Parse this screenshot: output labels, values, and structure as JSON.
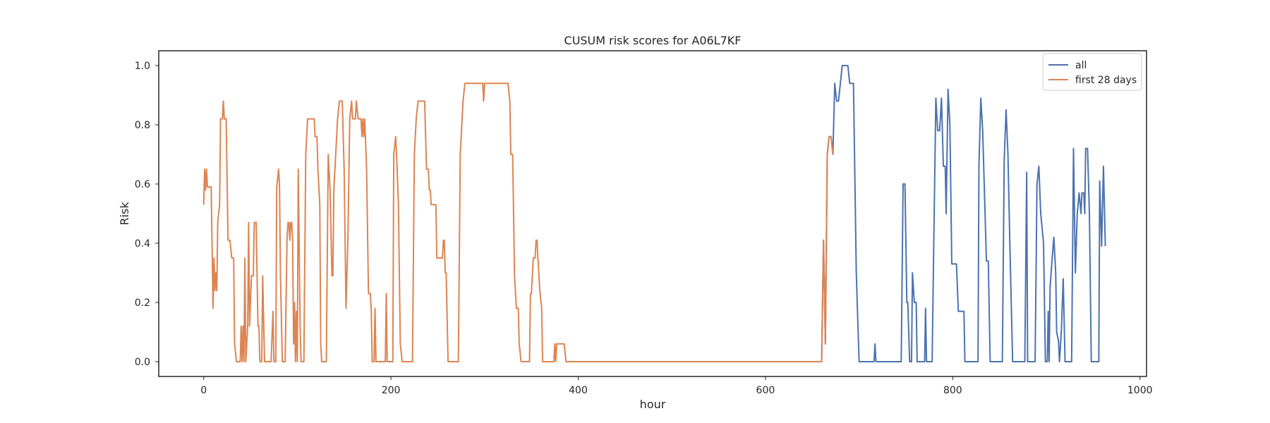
{
  "chart_data": {
    "type": "line",
    "title": "CUSUM risk scores for A06L7KF",
    "xlabel": "hour",
    "ylabel": "Risk",
    "xlim": [
      -48,
      1007
    ],
    "ylim": [
      -0.05,
      1.05
    ],
    "xticks": [
      0,
      200,
      400,
      600,
      800,
      1000
    ],
    "yticks": [
      0.0,
      0.2,
      0.4,
      0.6,
      0.8,
      1.0
    ],
    "grid": false,
    "legend_position": "top-right",
    "series": [
      {
        "name": "all",
        "color": "#4c72b0",
        "points": [
          [
            660,
            0
          ],
          [
            662,
            0.41
          ],
          [
            664,
            0.06
          ],
          [
            666,
            0.7
          ],
          [
            668,
            0.76
          ],
          [
            670,
            0.76
          ],
          [
            672,
            0.7
          ],
          [
            674,
            0.94
          ],
          [
            676,
            0.88
          ],
          [
            678,
            0.88
          ],
          [
            680,
            0.94
          ],
          [
            682,
            1.0
          ],
          [
            688,
            1.0
          ],
          [
            690,
            0.94
          ],
          [
            694,
            0.94
          ],
          [
            697,
            0.3
          ],
          [
            700,
            0
          ],
          [
            716,
            0
          ],
          [
            717,
            0.06
          ],
          [
            718,
            0
          ],
          [
            745,
            0
          ],
          [
            747,
            0.6
          ],
          [
            749,
            0.6
          ],
          [
            751,
            0.2
          ],
          [
            752,
            0.2
          ],
          [
            754,
            0
          ],
          [
            756,
            0
          ],
          [
            757,
            0.3
          ],
          [
            759,
            0.2
          ],
          [
            761,
            0.2
          ],
          [
            762,
            0
          ],
          [
            770,
            0
          ],
          [
            771,
            0.18
          ],
          [
            772,
            0
          ],
          [
            778,
            0
          ],
          [
            780,
            0.45
          ],
          [
            782,
            0.89
          ],
          [
            784,
            0.78
          ],
          [
            786,
            0.78
          ],
          [
            788,
            0.89
          ],
          [
            790,
            0.66
          ],
          [
            792,
            0.66
          ],
          [
            793,
            0.5
          ],
          [
            795,
            0.92
          ],
          [
            797,
            0.8
          ],
          [
            799,
            0.33
          ],
          [
            804,
            0.33
          ],
          [
            806,
            0.17
          ],
          [
            812,
            0.17
          ],
          [
            813,
            0
          ],
          [
            827,
            0
          ],
          [
            828,
            0.66
          ],
          [
            830,
            0.89
          ],
          [
            832,
            0.78
          ],
          [
            834,
            0.56
          ],
          [
            836,
            0.34
          ],
          [
            838,
            0.34
          ],
          [
            840,
            0
          ],
          [
            853,
            0
          ],
          [
            855,
            0.68
          ],
          [
            857,
            0.85
          ],
          [
            859,
            0.7
          ],
          [
            861,
            0.4
          ],
          [
            864,
            0
          ],
          [
            877,
            0
          ],
          [
            879,
            0.64
          ],
          [
            880,
            0
          ],
          [
            888,
            0
          ],
          [
            890,
            0.6
          ],
          [
            892,
            0.66
          ],
          [
            894,
            0.5
          ],
          [
            897,
            0.4
          ],
          [
            899,
            0
          ],
          [
            901,
            0
          ],
          [
            902,
            0.17
          ],
          [
            903,
            0
          ],
          [
            904,
            0.25
          ],
          [
            906,
            0.34
          ],
          [
            908,
            0.42
          ],
          [
            910,
            0.3
          ],
          [
            911,
            0.1
          ],
          [
            913,
            0.07
          ],
          [
            914,
            0
          ],
          [
            916,
            0.1
          ],
          [
            918,
            0.28
          ],
          [
            920,
            0
          ],
          [
            927,
            0
          ],
          [
            929,
            0.72
          ],
          [
            931,
            0.3
          ],
          [
            933,
            0.5
          ],
          [
            935,
            0.57
          ],
          [
            937,
            0.5
          ],
          [
            938,
            0.57
          ],
          [
            940,
            0.57
          ],
          [
            941,
            0.5
          ],
          [
            942,
            0.72
          ],
          [
            944,
            0.72
          ],
          [
            946,
            0.5
          ],
          [
            948,
            0
          ],
          [
            956,
            0
          ],
          [
            957,
            0.61
          ],
          [
            959,
            0.39
          ],
          [
            961,
            0.66
          ],
          [
            963,
            0.39
          ]
        ]
      },
      {
        "name": "first 28 days",
        "color": "#dd8452",
        "points": [
          [
            0,
            0.53
          ],
          [
            1,
            0.65
          ],
          [
            2,
            0.58
          ],
          [
            3,
            0.65
          ],
          [
            4,
            0.59
          ],
          [
            8,
            0.59
          ],
          [
            10,
            0.18
          ],
          [
            11,
            0.35
          ],
          [
            12,
            0.24
          ],
          [
            13,
            0.3
          ],
          [
            14,
            0.24
          ],
          [
            15,
            0.47
          ],
          [
            17,
            0.53
          ],
          [
            18,
            0.82
          ],
          [
            20,
            0.82
          ],
          [
            21,
            0.88
          ],
          [
            22,
            0.82
          ],
          [
            24,
            0.82
          ],
          [
            26,
            0.41
          ],
          [
            28,
            0.41
          ],
          [
            30,
            0.35
          ],
          [
            32,
            0.35
          ],
          [
            33,
            0.06
          ],
          [
            35,
            0
          ],
          [
            39,
            0
          ],
          [
            40,
            0.12
          ],
          [
            41,
            0
          ],
          [
            42,
            0.12
          ],
          [
            43,
            0
          ],
          [
            44,
            0.35
          ],
          [
            45,
            0
          ],
          [
            47,
            0.12
          ],
          [
            48,
            0.47
          ],
          [
            49,
            0.12
          ],
          [
            51,
            0.29
          ],
          [
            53,
            0.29
          ],
          [
            54,
            0.47
          ],
          [
            56,
            0.47
          ],
          [
            58,
            0.12
          ],
          [
            59,
            0.12
          ],
          [
            60,
            0
          ],
          [
            62,
            0
          ],
          [
            63,
            0.29
          ],
          [
            65,
            0
          ],
          [
            72,
            0
          ],
          [
            74,
            0.17
          ],
          [
            75,
            0
          ],
          [
            77,
            0
          ],
          [
            78,
            0.59
          ],
          [
            80,
            0.65
          ],
          [
            81,
            0.59
          ],
          [
            82,
            0.29
          ],
          [
            84,
            0
          ],
          [
            87,
            0
          ],
          [
            89,
            0.41
          ],
          [
            90,
            0.47
          ],
          [
            91,
            0.47
          ],
          [
            92,
            0.41
          ],
          [
            93,
            0.47
          ],
          [
            94,
            0.47
          ],
          [
            95,
            0.41
          ],
          [
            96,
            0.06
          ],
          [
            97,
            0.2
          ],
          [
            98,
            0
          ],
          [
            99,
            0.17
          ],
          [
            100,
            0
          ],
          [
            101,
            0.65
          ],
          [
            103,
            0.12
          ],
          [
            104,
            0
          ],
          [
            107,
            0
          ],
          [
            109,
            0.7
          ],
          [
            111,
            0.82
          ],
          [
            118,
            0.82
          ],
          [
            119,
            0.76
          ],
          [
            121,
            0.76
          ],
          [
            122,
            0.65
          ],
          [
            124,
            0.53
          ],
          [
            125,
            0.06
          ],
          [
            126,
            0
          ],
          [
            131,
            0
          ],
          [
            133,
            0.7
          ],
          [
            135,
            0.58
          ],
          [
            137,
            0.29
          ],
          [
            138,
            0.29
          ],
          [
            139,
            0.58
          ],
          [
            141,
            0.7
          ],
          [
            143,
            0.82
          ],
          [
            145,
            0.88
          ],
          [
            148,
            0.88
          ],
          [
            150,
            0.65
          ],
          [
            152,
            0.18
          ],
          [
            154,
            0.41
          ],
          [
            156,
            0.82
          ],
          [
            158,
            0.88
          ],
          [
            159,
            0.82
          ],
          [
            162,
            0.82
          ],
          [
            163,
            0.88
          ],
          [
            165,
            0.82
          ],
          [
            168,
            0.82
          ],
          [
            169,
            0.76
          ],
          [
            170,
            0.82
          ],
          [
            171,
            0.76
          ],
          [
            172,
            0.82
          ],
          [
            174,
            0.65
          ],
          [
            176,
            0.23
          ],
          [
            178,
            0.23
          ],
          [
            179,
            0.17
          ],
          [
            180,
            0
          ],
          [
            182,
            0
          ],
          [
            183,
            0.18
          ],
          [
            184,
            0
          ],
          [
            194,
            0
          ],
          [
            195,
            0.23
          ],
          [
            196,
            0
          ],
          [
            202,
            0
          ],
          [
            203,
            0.7
          ],
          [
            205,
            0.76
          ],
          [
            206,
            0.7
          ],
          [
            208,
            0.53
          ],
          [
            209,
            0.29
          ],
          [
            210,
            0.06
          ],
          [
            212,
            0
          ],
          [
            223,
            0
          ],
          [
            225,
            0.7
          ],
          [
            227,
            0.82
          ],
          [
            229,
            0.88
          ],
          [
            236,
            0.88
          ],
          [
            238,
            0.65
          ],
          [
            240,
            0.65
          ],
          [
            241,
            0.58
          ],
          [
            242,
            0.58
          ],
          [
            243,
            0.53
          ],
          [
            248,
            0.53
          ],
          [
            249,
            0.35
          ],
          [
            255,
            0.35
          ],
          [
            256,
            0.41
          ],
          [
            257,
            0.41
          ],
          [
            258,
            0.3
          ],
          [
            259,
            0.3
          ],
          [
            261,
            0
          ],
          [
            272,
            0
          ],
          [
            274,
            0.7
          ],
          [
            277,
            0.88
          ],
          [
            279,
            0.94
          ],
          [
            298,
            0.94
          ],
          [
            299,
            0.88
          ],
          [
            300,
            0.94
          ],
          [
            325,
            0.94
          ],
          [
            327,
            0.88
          ],
          [
            328,
            0.7
          ],
          [
            330,
            0.7
          ],
          [
            332,
            0.29
          ],
          [
            334,
            0.18
          ],
          [
            336,
            0.18
          ],
          [
            337,
            0.06
          ],
          [
            339,
            0
          ],
          [
            348,
            0
          ],
          [
            349,
            0.23
          ],
          [
            350,
            0.23
          ],
          [
            352,
            0.35
          ],
          [
            354,
            0.35
          ],
          [
            355,
            0.41
          ],
          [
            356,
            0.41
          ],
          [
            357,
            0.35
          ],
          [
            359,
            0.24
          ],
          [
            361,
            0.18
          ],
          [
            362,
            0
          ],
          [
            374,
            0
          ],
          [
            375,
            0.06
          ],
          [
            376,
            0
          ],
          [
            377,
            0.06
          ],
          [
            385,
            0.06
          ],
          [
            387,
            0
          ],
          [
            660,
            0
          ],
          [
            662,
            0.41
          ],
          [
            664,
            0.06
          ],
          [
            666,
            0.7
          ],
          [
            668,
            0.76
          ],
          [
            670,
            0.76
          ],
          [
            672,
            0.7
          ]
        ]
      }
    ]
  }
}
